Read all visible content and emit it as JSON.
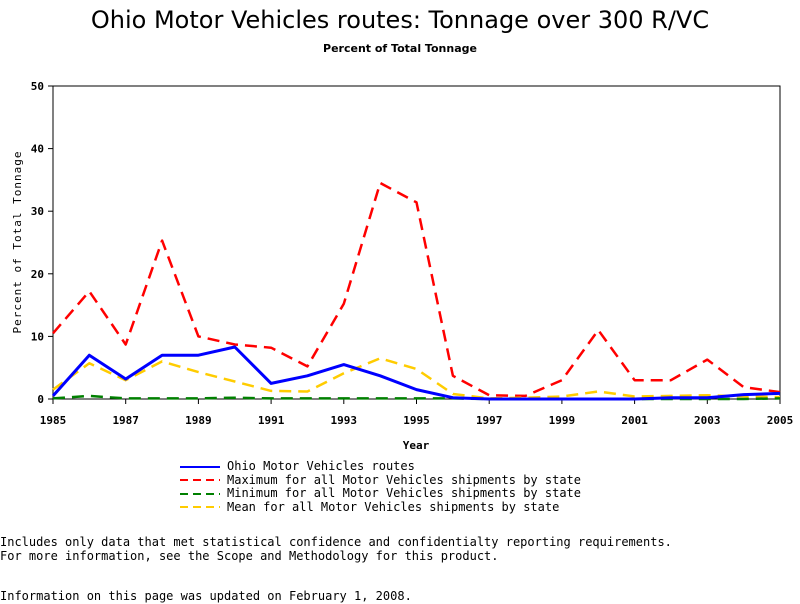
{
  "header": {
    "title": "Ohio Motor Vehicles routes: Tonnage over 300 R/VC",
    "subtitle": "Percent of Total Tonnage"
  },
  "chart_data": {
    "type": "line",
    "title": "Ohio Motor Vehicles routes: Tonnage over 300 R/VC",
    "subtitle": "Percent of Total Tonnage",
    "xlabel": "Year",
    "ylabel": "Percent of Total Tonnage",
    "xlim": [
      1985,
      2005
    ],
    "ylim": [
      0,
      50
    ],
    "x_ticks": [
      1985,
      1987,
      1989,
      1991,
      1993,
      1995,
      1997,
      1999,
      2001,
      2003,
      2005
    ],
    "y_ticks": [
      0,
      10,
      20,
      30,
      40,
      50
    ],
    "grid": false,
    "legend_position": "bottom",
    "x": [
      1985,
      1986,
      1987,
      1988,
      1989,
      1990,
      1991,
      1992,
      1993,
      1994,
      1995,
      1996,
      1997,
      1998,
      1999,
      2000,
      2001,
      2002,
      2003,
      2004,
      2005
    ],
    "series": [
      {
        "name": "Ohio Motor Vehicles routes",
        "color": "#0000ff",
        "style": "solid",
        "values": [
          0.5,
          7,
          3.2,
          7,
          7,
          8.3,
          2.5,
          3.7,
          5.5,
          3.7,
          1.5,
          0.2,
          0,
          0,
          0,
          0,
          0,
          0.2,
          0.2,
          0.7,
          0.9
        ]
      },
      {
        "name": "Maximum for all Motor Vehicles shipments by state",
        "color": "#ff0000",
        "style": "dashed",
        "values": [
          10.5,
          17.2,
          8.7,
          25.3,
          10,
          8.7,
          8.2,
          5.2,
          15.2,
          34.5,
          31.4,
          3.7,
          0.6,
          0.5,
          3,
          11,
          3,
          3,
          6.3,
          1.9,
          1.1
        ]
      },
      {
        "name": "Minimum for all Motor Vehicles shipments by state",
        "color": "#008000",
        "style": "dashed",
        "values": [
          0.1,
          0.5,
          0.1,
          0.1,
          0.1,
          0.2,
          0.1,
          0.1,
          0.1,
          0.1,
          0.1,
          0.1,
          0,
          0,
          0,
          0,
          0,
          0,
          0,
          0,
          0.1
        ]
      },
      {
        "name": "Mean for all Motor Vehicles shipments by state",
        "color": "#ffcc00",
        "style": "dashed",
        "values": [
          1.5,
          5.7,
          3,
          6,
          4.3,
          2.8,
          1.3,
          1.2,
          4.1,
          6.5,
          4.8,
          0.8,
          0.1,
          0.2,
          0.4,
          1.2,
          0.4,
          0.5,
          0.6,
          0.4,
          0.3
        ]
      }
    ]
  },
  "notes": {
    "line1": "Includes only data that met statistical confidence and confidentialty reporting requirements.",
    "line2": "For more information, see the Scope and Methodology for this product.",
    "line3": "Information on this page was updated on February 1, 2008."
  }
}
